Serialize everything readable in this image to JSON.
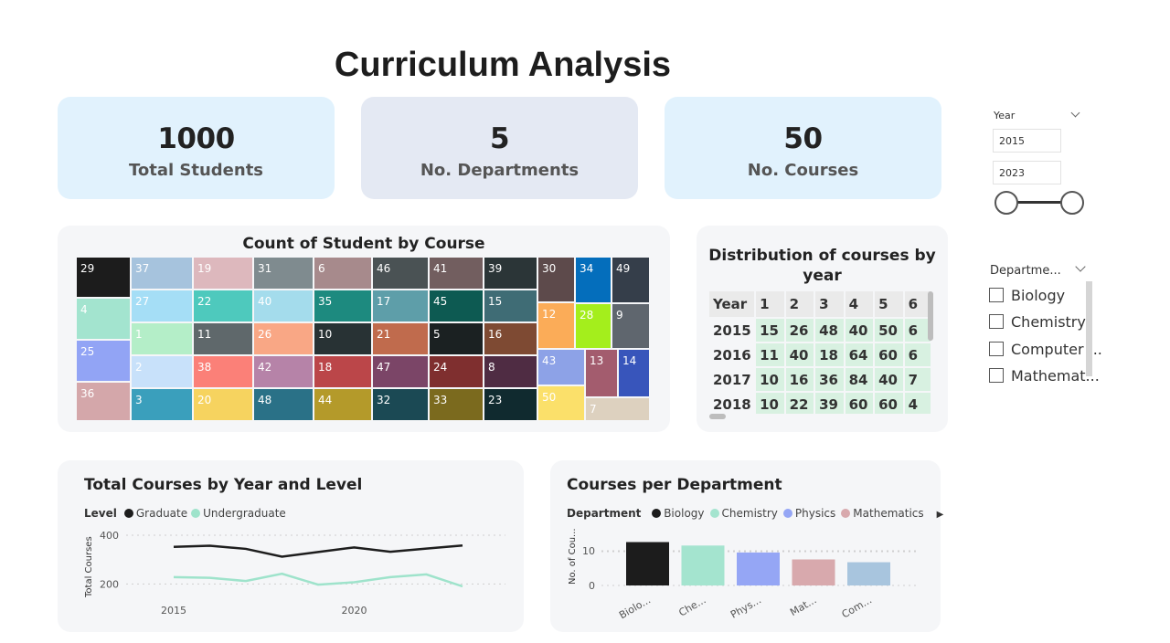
{
  "title": "Curriculum Analysis",
  "kpis": [
    {
      "value": "1000",
      "label": "Total Students"
    },
    {
      "value": "5",
      "label": "No. Departments"
    },
    {
      "value": "50",
      "label": "No. Courses"
    }
  ],
  "treemap": {
    "title": "Count of Student by Course",
    "cells": [
      {
        "label": "29",
        "color": "#1c1c1c"
      },
      {
        "label": "4",
        "color": "#a3e4cf"
      },
      {
        "label": "25",
        "color": "#92a4f5"
      },
      {
        "label": "36",
        "color": "#d4a7aa"
      },
      {
        "label": "37",
        "color": "#a6c3dd"
      },
      {
        "label": "27",
        "color": "#a5def6"
      },
      {
        "label": "1",
        "color": "#b4eec8"
      },
      {
        "label": "2",
        "color": "#c8e1fa"
      },
      {
        "label": "3",
        "color": "#3a9fbc"
      },
      {
        "label": "19",
        "color": "#ddb8bd"
      },
      {
        "label": "22",
        "color": "#4ec9bd"
      },
      {
        "label": "11",
        "color": "#5f686b"
      },
      {
        "label": "38",
        "color": "#fb8078"
      },
      {
        "label": "20",
        "color": "#f6d35f"
      },
      {
        "label": "31",
        "color": "#7f8b8f"
      },
      {
        "label": "40",
        "color": "#a4dcec"
      },
      {
        "label": "26",
        "color": "#f9a785"
      },
      {
        "label": "42",
        "color": "#b683a8"
      },
      {
        "label": "48",
        "color": "#2a7187"
      },
      {
        "label": "6",
        "color": "#a78a8c"
      },
      {
        "label": "35",
        "color": "#1d8a7f"
      },
      {
        "label": "10",
        "color": "#283234"
      },
      {
        "label": "18",
        "color": "#bb4649"
      },
      {
        "label": "44",
        "color": "#b49a2a"
      },
      {
        "label": "46",
        "color": "#4a5254"
      },
      {
        "label": "17",
        "color": "#5e9ea9"
      },
      {
        "label": "21",
        "color": "#c06b4d"
      },
      {
        "label": "47",
        "color": "#7b4567"
      },
      {
        "label": "32",
        "color": "#1b4954"
      },
      {
        "label": "41",
        "color": "#725e5f"
      },
      {
        "label": "45",
        "color": "#0d5a52"
      },
      {
        "label": "5",
        "color": "#1b2122"
      },
      {
        "label": "24",
        "color": "#7f2f2f"
      },
      {
        "label": "33",
        "color": "#7b6a1e"
      },
      {
        "label": "39",
        "color": "#2b3537"
      },
      {
        "label": "15",
        "color": "#3f6c75"
      },
      {
        "label": "16",
        "color": "#7e4a33"
      },
      {
        "label": "8",
        "color": "#4f2c43"
      },
      {
        "label": "23",
        "color": "#102a2f"
      },
      {
        "label": "30",
        "color": "#5d4a4b"
      },
      {
        "label": "12",
        "color": "#fbac58"
      },
      {
        "label": "34",
        "color": "#046ebc"
      },
      {
        "label": "28",
        "color": "#a4ee1c"
      },
      {
        "label": "49",
        "color": "#353e4a"
      },
      {
        "label": "9",
        "color": "#5f666e"
      },
      {
        "label": "43",
        "color": "#8da2e7"
      },
      {
        "label": "50",
        "color": "#fbe06a"
      },
      {
        "label": "13",
        "color": "#a35c6e"
      },
      {
        "label": "14",
        "color": "#3855bb"
      },
      {
        "label": "7",
        "color": "#ddd1bf"
      }
    ]
  },
  "matrix": {
    "title": "Distribution of courses by year",
    "headers": [
      "Year",
      "1",
      "2",
      "3",
      "4",
      "5",
      "6"
    ],
    "rows": [
      [
        "2015",
        "15",
        "26",
        "48",
        "40",
        "50",
        "6"
      ],
      [
        "2016",
        "11",
        "40",
        "18",
        "64",
        "60",
        "6"
      ],
      [
        "2017",
        "10",
        "16",
        "36",
        "84",
        "40",
        "7"
      ],
      [
        "2018",
        "10",
        "22",
        "39",
        "60",
        "60",
        "4"
      ]
    ]
  },
  "line_chart": {
    "title": "Total Courses by Year and Level",
    "legend_title": "Level",
    "ylabel": "Total Courses",
    "chart_data": {
      "type": "line",
      "x": [
        2015,
        2016,
        2017,
        2018,
        2019,
        2020,
        2021,
        2022,
        2023
      ],
      "series": [
        {
          "name": "Graduate",
          "color": "#1d1d1d",
          "values": [
            352,
            357,
            344,
            312,
            331,
            350,
            332,
            345,
            358
          ]
        },
        {
          "name": "Undergraduate",
          "color": "#9ee3cb",
          "values": [
            228,
            225,
            212,
            242,
            197,
            207,
            228,
            239,
            190
          ]
        }
      ],
      "ylim": [
        100,
        400
      ],
      "yticks": [
        200,
        400
      ],
      "xticks": [
        "2015",
        "2020"
      ]
    }
  },
  "bar_chart": {
    "title": "Courses per Department",
    "legend_title": "Department",
    "ylabel": "No. of Cou...",
    "chart_data": {
      "type": "bar",
      "categories": [
        "Biolo...",
        "Che...",
        "Phys...",
        "Mat...",
        "Com..."
      ],
      "values": [
        12.5,
        11.5,
        9.5,
        7.5,
        6.7
      ],
      "colors": [
        "#1c1c1c",
        "#a4e4cf",
        "#95a6f5",
        "#d8a9ad",
        "#a8c5de"
      ],
      "legend": [
        {
          "name": "Biology",
          "color": "#1c1c1c"
        },
        {
          "name": "Chemistry",
          "color": "#a4e4cf"
        },
        {
          "name": "Physics",
          "color": "#95a6f5"
        },
        {
          "name": "Mathematics",
          "color": "#d8a9ad"
        }
      ],
      "ylim": [
        0,
        14
      ],
      "yticks": [
        0,
        10
      ]
    }
  },
  "year_slicer": {
    "label": "Year",
    "start": "2015",
    "end": "2023"
  },
  "dept_slicer": {
    "label": "Departme...",
    "items": [
      "Biology",
      "Chemistry",
      "Computer ...",
      "Mathemat..."
    ]
  }
}
